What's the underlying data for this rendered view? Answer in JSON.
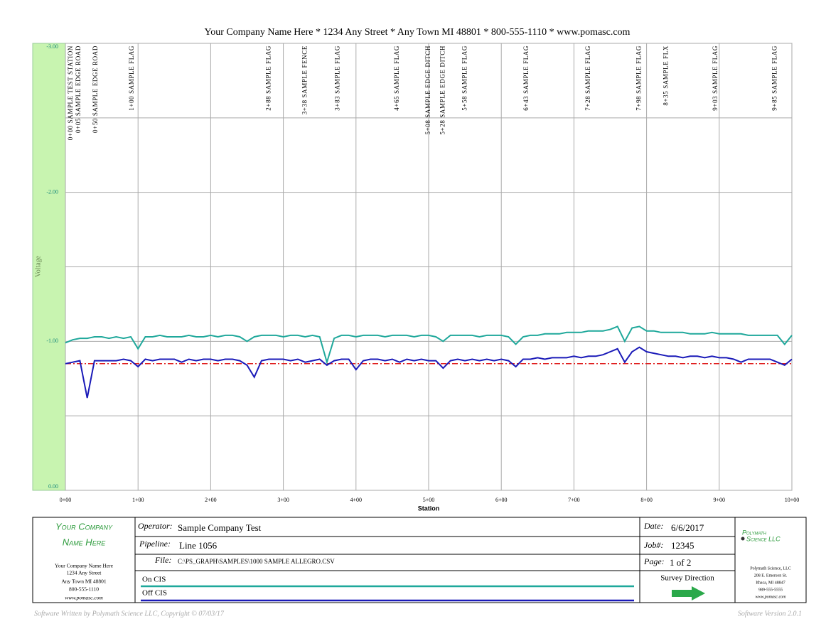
{
  "header": "Your Company Name Here * 1234 Any Street * Any Town MI 48801 * 800-555-1110 * www.pomasc.com",
  "chart_data": {
    "type": "line",
    "xlabel": "Station",
    "ylabel": "Voltage",
    "x": [
      0,
      10,
      20,
      30,
      40,
      50,
      60,
      70,
      80,
      90,
      100,
      110,
      120,
      130,
      140,
      150,
      160,
      170,
      180,
      190,
      200,
      210,
      220,
      230,
      240,
      250,
      260,
      270,
      280,
      290,
      300,
      310,
      320,
      330,
      340,
      350,
      360,
      370,
      380,
      390,
      400,
      410,
      420,
      430,
      440,
      450,
      460,
      470,
      480,
      490,
      500,
      510,
      520,
      530,
      540,
      550,
      560,
      570,
      580,
      590,
      600,
      610,
      620,
      630,
      640,
      650,
      660,
      670,
      680,
      690,
      700,
      710,
      720,
      730,
      740,
      750,
      760,
      770,
      780,
      790,
      800,
      810,
      820,
      830,
      840,
      850,
      860,
      870,
      880,
      890,
      900,
      910,
      920,
      930,
      940,
      950,
      960,
      970,
      980,
      990,
      1000
    ],
    "series": [
      {
        "name": "On CIS",
        "color": "#1fa89b",
        "values": [
          -0.99,
          -1.01,
          -1.02,
          -1.02,
          -1.03,
          -1.03,
          -1.02,
          -1.03,
          -1.02,
          -1.03,
          -0.95,
          -1.03,
          -1.03,
          -1.04,
          -1.03,
          -1.03,
          -1.03,
          -1.04,
          -1.03,
          -1.03,
          -1.04,
          -1.03,
          -1.04,
          -1.04,
          -1.03,
          -1.0,
          -1.03,
          -1.04,
          -1.04,
          -1.04,
          -1.03,
          -1.04,
          -1.04,
          -1.03,
          -1.04,
          -1.03,
          -0.86,
          -1.02,
          -1.04,
          -1.04,
          -1.03,
          -1.04,
          -1.04,
          -1.04,
          -1.03,
          -1.04,
          -1.04,
          -1.04,
          -1.03,
          -1.04,
          -1.04,
          -1.03,
          -1.0,
          -1.04,
          -1.04,
          -1.04,
          -1.04,
          -1.03,
          -1.04,
          -1.04,
          -1.04,
          -1.03,
          -0.98,
          -1.03,
          -1.04,
          -1.04,
          -1.05,
          -1.05,
          -1.05,
          -1.06,
          -1.06,
          -1.06,
          -1.07,
          -1.07,
          -1.07,
          -1.08,
          -1.1,
          -1.0,
          -1.09,
          -1.1,
          -1.07,
          -1.07,
          -1.06,
          -1.06,
          -1.06,
          -1.06,
          -1.05,
          -1.05,
          -1.05,
          -1.06,
          -1.05,
          -1.05,
          -1.05,
          -1.05,
          -1.04,
          -1.04,
          -1.04,
          -1.04,
          -1.04,
          -0.98,
          -1.04
        ]
      },
      {
        "name": "Off CIS",
        "color": "#1a1ab8",
        "values": [
          -0.85,
          -0.86,
          -0.87,
          -0.62,
          -0.87,
          -0.87,
          -0.87,
          -0.87,
          -0.88,
          -0.87,
          -0.83,
          -0.88,
          -0.87,
          -0.88,
          -0.88,
          -0.88,
          -0.86,
          -0.88,
          -0.87,
          -0.88,
          -0.88,
          -0.87,
          -0.88,
          -0.88,
          -0.87,
          -0.84,
          -0.76,
          -0.87,
          -0.88,
          -0.88,
          -0.88,
          -0.87,
          -0.88,
          -0.86,
          -0.87,
          -0.88,
          -0.84,
          -0.87,
          -0.88,
          -0.88,
          -0.81,
          -0.87,
          -0.88,
          -0.88,
          -0.87,
          -0.88,
          -0.86,
          -0.88,
          -0.87,
          -0.88,
          -0.87,
          -0.87,
          -0.82,
          -0.87,
          -0.88,
          -0.87,
          -0.88,
          -0.87,
          -0.88,
          -0.87,
          -0.88,
          -0.87,
          -0.83,
          -0.88,
          -0.88,
          -0.89,
          -0.88,
          -0.89,
          -0.89,
          -0.89,
          -0.9,
          -0.89,
          -0.9,
          -0.9,
          -0.91,
          -0.93,
          -0.95,
          -0.86,
          -0.93,
          -0.96,
          -0.93,
          -0.92,
          -0.91,
          -0.9,
          -0.9,
          -0.89,
          -0.9,
          -0.9,
          -0.89,
          -0.9,
          -0.89,
          -0.89,
          -0.88,
          -0.86,
          -0.88,
          -0.88,
          -0.88,
          -0.88,
          -0.86,
          -0.84,
          -0.88
        ]
      }
    ],
    "reference_line": {
      "value": -0.85,
      "color": "#e02020"
    },
    "xlim": [
      0,
      1000
    ],
    "xticks": [
      {
        "value": 0,
        "label": "0+00"
      },
      {
        "value": 100,
        "label": "1+00"
      },
      {
        "value": 200,
        "label": "2+00"
      },
      {
        "value": 300,
        "label": "3+00"
      },
      {
        "value": 400,
        "label": "4+00"
      },
      {
        "value": 500,
        "label": "5+00"
      },
      {
        "value": 600,
        "label": "6+00"
      },
      {
        "value": 700,
        "label": "7+00"
      },
      {
        "value": 800,
        "label": "8+00"
      },
      {
        "value": 900,
        "label": "9+00"
      },
      {
        "value": 1000,
        "label": "10+00"
      }
    ],
    "ylim": [
      0,
      -3
    ],
    "yticks": [
      {
        "value": -3,
        "label": "-3.00"
      },
      {
        "value": -2,
        "label": "-2.00"
      },
      {
        "value": -1,
        "label": "-1.00"
      },
      {
        "value": 0,
        "label": "0.00"
      }
    ],
    "minor_yticks": [
      -2.5,
      -1.5,
      -0.5
    ],
    "grid": true,
    "annotations": [
      {
        "text": "0+00  SAMPLE TEST STATION",
        "x": 0
      },
      {
        "text": "0+05  SAMPLE EDGE ROAD",
        "x": 5
      },
      {
        "text": "0+50  SAMPLE EDGE ROAD",
        "x": 50
      },
      {
        "text": "1+00  SAMPLE FLAG",
        "x": 100
      },
      {
        "text": "2+88  SAMPLE FLAG",
        "x": 288
      },
      {
        "text": "3+38  SAMPLE FENCE",
        "x": 338
      },
      {
        "text": "3+83  SAMPLE FLAG",
        "x": 383
      },
      {
        "text": "4+65  SAMPLE FLAG",
        "x": 465
      },
      {
        "text": "5+08  SAMPLE EDGE DITCH",
        "x": 508
      },
      {
        "text": "5+28  SAMPLE EDGE DITCH",
        "x": 528
      },
      {
        "text": "5+58  SAMPLE FLAG",
        "x": 558
      },
      {
        "text": "6+43  SAMPLE FLAG",
        "x": 643
      },
      {
        "text": "7+28  SAMPLE FLAG",
        "x": 728
      },
      {
        "text": "7+98  SAMPLE FLAG",
        "x": 798
      },
      {
        "text": "8+35  SAMPLE FLX",
        "x": 835
      },
      {
        "text": "9+03  SAMPLE FLAG",
        "x": 903
      },
      {
        "text": "9+85  SAMPLE FLAG",
        "x": 985
      }
    ]
  },
  "footer": {
    "company": {
      "name": [
        "Your Company",
        "Name Here"
      ],
      "address": [
        "Your Company Name Here",
        "1234 Any Street",
        "Any Town MI 48801",
        "800-555-1110",
        "www.pomasc.com"
      ]
    },
    "operator": {
      "label": "Operator:",
      "value": "Sample Company Test"
    },
    "pipeline": {
      "label": "Pipeline:",
      "value": "Line 1056"
    },
    "file": {
      "label": "File:",
      "value": "C:\\PS_GRAPH\\SAMPLES\\1000 SAMPLE ALLEGRO.CSV"
    },
    "date": {
      "label": "Date:",
      "value": "6/6/2017"
    },
    "job": {
      "label": "Job#:",
      "value": "12345"
    },
    "page": {
      "label": "Page:",
      "value": "1 of 2"
    },
    "survey_direction": "Survey Direction",
    "vendor": {
      "name": [
        "Polymath",
        "Science LLC"
      ],
      "address": [
        "Polymath Science, LLC",
        "208 E. Emerson St.",
        "Ithaca, MI 48847",
        "989-555-5555",
        "www.pomasc.com"
      ]
    },
    "copyright": "Software Written by Polymath Science LLC, Copyright © 07/03/17",
    "version": "Software Version 2.0.1"
  }
}
